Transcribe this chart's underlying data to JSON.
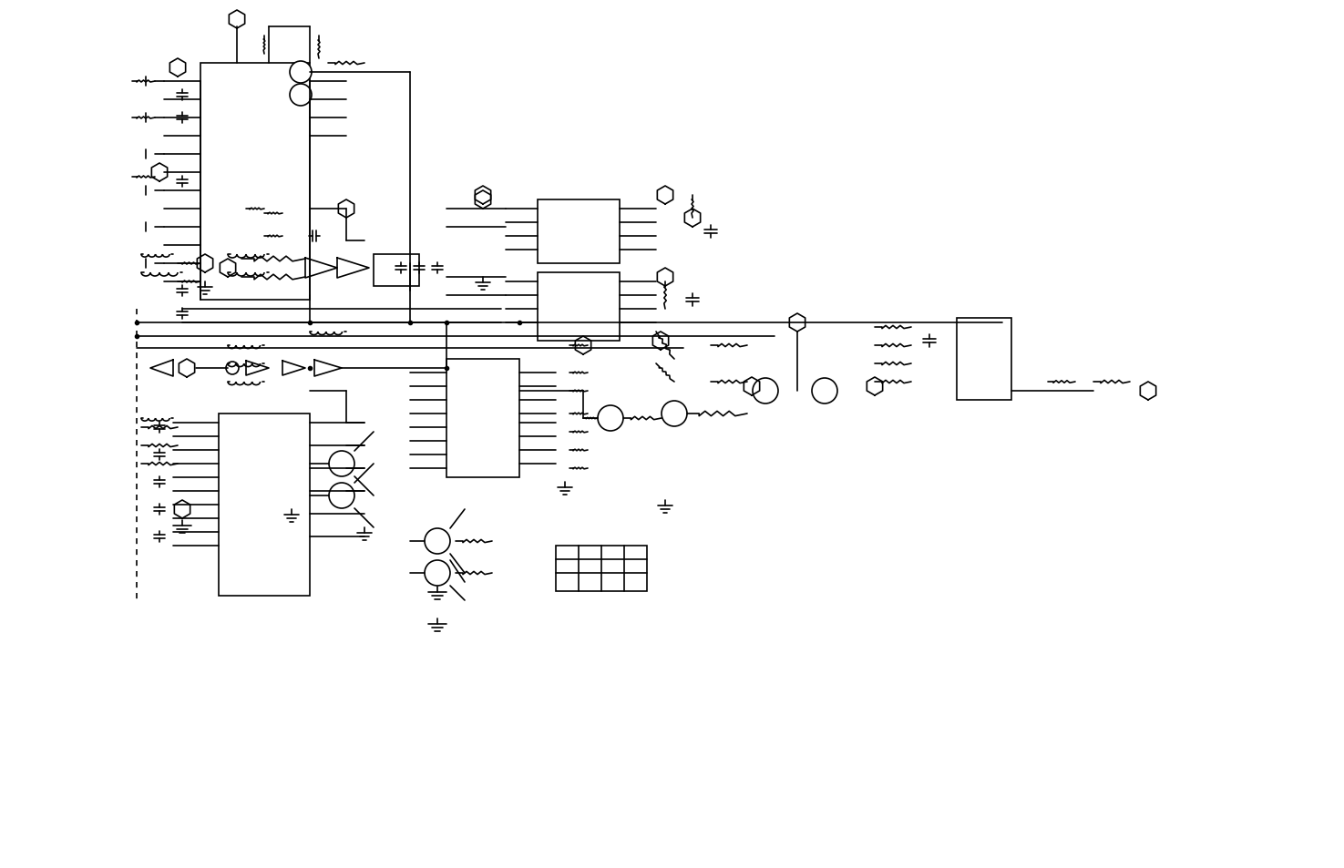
{
  "bg_color": "#ffffff",
  "line_color": "#000000",
  "line_width": 1.2,
  "fig_width": 14.75,
  "fig_height": 9.54,
  "dpi": 100
}
